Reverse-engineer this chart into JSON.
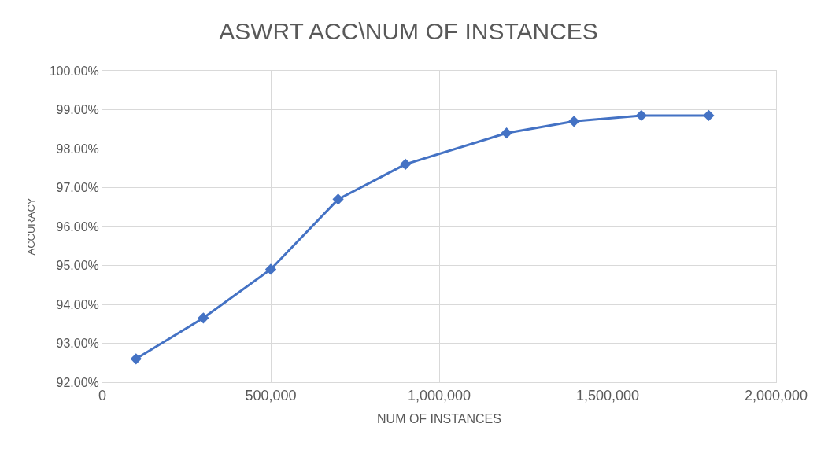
{
  "chart_data": {
    "type": "line",
    "title": "ASWRT ACC\\NUM OF INSTANCES",
    "xlabel": "NUM OF INSTANCES",
    "ylabel": "ACCURACY",
    "x": [
      100000,
      300000,
      500000,
      700000,
      900000,
      1200000,
      1400000,
      1600000,
      1800000
    ],
    "series": [
      {
        "color": "#4472c4",
        "values": [
          92.6,
          93.65,
          94.9,
          96.7,
          97.6,
          98.4,
          98.7,
          98.85,
          98.85
        ]
      }
    ],
    "xlim": [
      0,
      2000000
    ],
    "xticks": [
      0,
      {
        "value": 500000,
        "label": "500,000"
      },
      {
        "value": 1000000,
        "label": "1,000,000"
      },
      {
        "value": 1500000,
        "label": "1,500,000"
      },
      {
        "value": 2000000,
        "label": "2,000,000"
      }
    ],
    "ylim": [
      92,
      100
    ],
    "yticks": [
      {
        "value": 92,
        "label": "92.00%"
      },
      {
        "value": 93,
        "label": "93.00%"
      },
      {
        "value": 94,
        "label": "94.00%"
      },
      {
        "value": 95,
        "label": "95.00%"
      },
      {
        "value": 96,
        "label": "96.00%"
      },
      {
        "value": 97,
        "label": "97.00%"
      },
      {
        "value": 98,
        "label": "98.00%"
      },
      {
        "value": 99,
        "label": "99.00%"
      },
      {
        "value": 100,
        "label": "100.00%"
      }
    ],
    "grid": true,
    "marker": "diamond",
    "line_style": "solid",
    "legend": false
  }
}
